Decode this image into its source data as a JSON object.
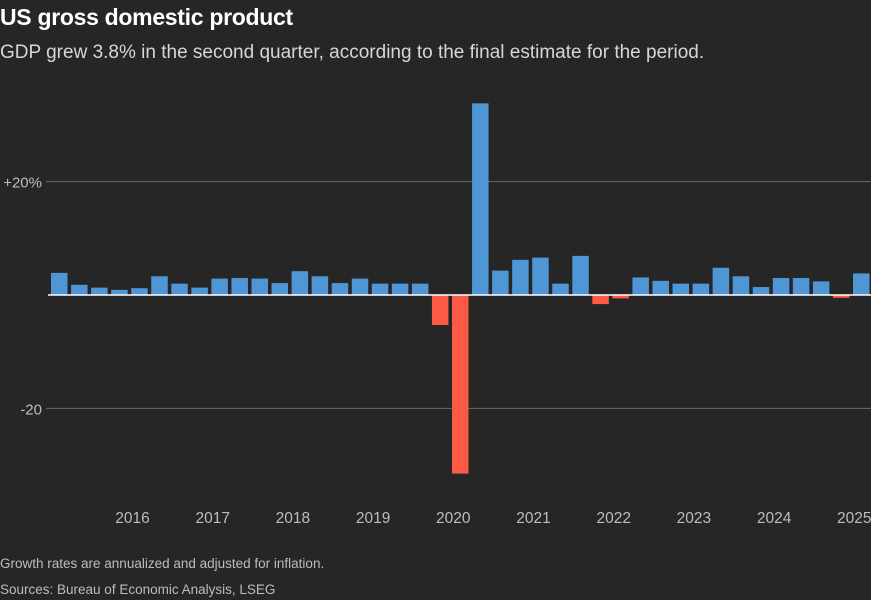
{
  "colors": {
    "positive": "#4f97d4",
    "negative": "#fc5a45",
    "background": "#262626"
  },
  "chart_data": {
    "type": "bar",
    "title": "US gross domestic product",
    "subtitle": "GDP grew 3.8% in the second quarter, according to the final estimate for the period.",
    "footnote": "Growth rates are annualized and adjusted for inflation.",
    "source": "Sources: Bureau of Economic Analysis, LSEG",
    "xlabel": "",
    "ylabel": "",
    "ylim": [
      -32,
      35
    ],
    "y_ticks": [
      {
        "value": 20,
        "label": "+20%"
      },
      {
        "value": -20,
        "label": "-20"
      }
    ],
    "year_labels": [
      "2016",
      "2017",
      "2018",
      "2019",
      "2020",
      "2021",
      "2022",
      "2023",
      "2024",
      "2025"
    ],
    "quarters": [
      "2015 Q2",
      "2015 Q3",
      "2015 Q4",
      "2016 Q1",
      "2016 Q2",
      "2016 Q3",
      "2016 Q4",
      "2017 Q1",
      "2017 Q2",
      "2017 Q3",
      "2017 Q4",
      "2018 Q1",
      "2018 Q2",
      "2018 Q3",
      "2018 Q4",
      "2019 Q1",
      "2019 Q2",
      "2019 Q3",
      "2019 Q4",
      "2020 Q1",
      "2020 Q2",
      "2020 Q3",
      "2020 Q4",
      "2021 Q1",
      "2021 Q2",
      "2021 Q3",
      "2021 Q4",
      "2022 Q1",
      "2022 Q2",
      "2022 Q3",
      "2022 Q4",
      "2023 Q1",
      "2023 Q2",
      "2023 Q3",
      "2023 Q4",
      "2024 Q1",
      "2024 Q2",
      "2024 Q3",
      "2024 Q4",
      "2025 Q1",
      "2025 Q2"
    ],
    "values": [
      3.9,
      1.8,
      1.3,
      0.9,
      1.2,
      3.3,
      2.0,
      1.3,
      2.9,
      3.0,
      2.9,
      2.1,
      4.2,
      3.3,
      2.1,
      2.9,
      2.0,
      2.0,
      2.0,
      -5.3,
      -31.5,
      33.8,
      4.3,
      6.2,
      6.6,
      2.0,
      6.9,
      -1.6,
      -0.6,
      3.1,
      2.5,
      2.0,
      2.0,
      4.8,
      3.3,
      1.4,
      3.0,
      3.0,
      2.4,
      -0.5,
      3.8
    ]
  }
}
